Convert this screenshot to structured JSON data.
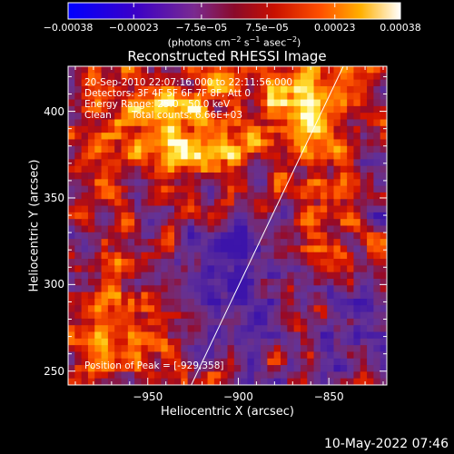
{
  "chart_data": {
    "type": "heatmap",
    "title": "Reconstructed RHESSI Image",
    "xlabel": "Heliocentric X (arcsec)",
    "ylabel": "Heliocentric Y (arcsec)",
    "xlim": [
      -994,
      -818
    ],
    "ylim": [
      242,
      426
    ],
    "x_ticks": [
      -950,
      -900,
      -850
    ],
    "x_tick_labels": [
      "−950",
      "−900",
      "−850"
    ],
    "y_ticks": [
      250,
      300,
      350,
      400
    ],
    "y_tick_labels": [
      "250",
      "300",
      "350",
      "400"
    ],
    "colorbar": {
      "min": -0.00038,
      "max": 0.00038,
      "ticks": [
        -0.00038,
        -0.00023,
        -7.5e-05,
        7.5e-05,
        0.00023,
        0.00038
      ],
      "tick_labels": [
        "−0.00038",
        "−0.00023",
        "−7.5e−05",
        "7.5e−05",
        "0.00023",
        "0.00038"
      ],
      "units_prefix": "(photons cm",
      "units_exp1": "−2",
      "units_mid1": " s",
      "units_exp2": "−1",
      "units_mid2": " asec",
      "units_exp3": "−2",
      "units_suffix": ")"
    },
    "annotations": {
      "time_range": "20-Sep-2010 22:07:16.000 to 22:11:56.000",
      "detectors": "Detectors: 3F 4F 5F 6F 7F 8F, Att 0",
      "energy_range": "Energy Range: 25.0 - 50.0 keV",
      "clean_label": "Clean",
      "total_counts": "Total counts: 6.66E+03",
      "peak": "Position of Peak = [-929,358]"
    },
    "limb_line": [
      [
        -926,
        242
      ],
      [
        -842,
        426
      ]
    ],
    "peak_position": [
      -929,
      358
    ],
    "grid": false
  },
  "footer": {
    "date": "10-May-2022 07:46"
  }
}
